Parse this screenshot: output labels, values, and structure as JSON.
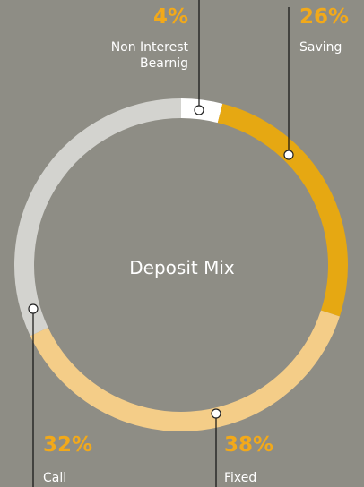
{
  "chart_data": {
    "type": "donut",
    "title": "Deposit Mix",
    "categories": [
      "Non Interest Bearnig",
      "Saving",
      "Fixed",
      "Call"
    ],
    "values": [
      4,
      26,
      38,
      32
    ],
    "value_labels": [
      "4%",
      "26%",
      "38%",
      "32%"
    ],
    "colors": [
      "#ffffff",
      "#e6a812",
      "#f4cd88",
      "#d3d3cf"
    ]
  }
}
